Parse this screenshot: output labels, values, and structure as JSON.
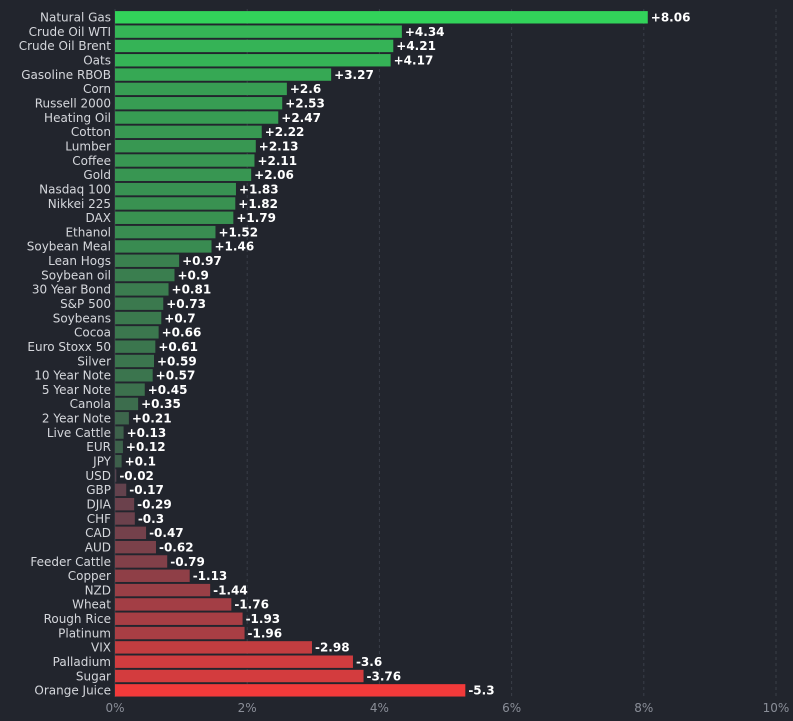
{
  "chart_data": {
    "type": "bar",
    "orientation": "horizontal",
    "categories": [
      "Natural Gas",
      "Crude Oil WTI",
      "Crude Oil Brent",
      "Oats",
      "Gasoline RBOB",
      "Corn",
      "Russell 2000",
      "Heating Oil",
      "Cotton",
      "Lumber",
      "Coffee",
      "Gold",
      "Nasdaq 100",
      "Nikkei 225",
      "DAX",
      "Ethanol",
      "Soybean Meal",
      "Lean Hogs",
      "Soybean oil",
      "30 Year Bond",
      "S&P 500",
      "Soybeans",
      "Cocoa",
      "Euro Stoxx 50",
      "Silver",
      "10 Year Note",
      "5 Year Note",
      "Canola",
      "2 Year Note",
      "Live Cattle",
      "EUR",
      "JPY",
      "USD",
      "GBP",
      "DJIA",
      "CHF",
      "CAD",
      "AUD",
      "Feeder Cattle",
      "Copper",
      "NZD",
      "Wheat",
      "Rough Rice",
      "Platinum",
      "VIX",
      "Palladium",
      "Sugar",
      "Orange Juice"
    ],
    "values": [
      8.06,
      4.34,
      4.21,
      4.17,
      3.27,
      2.6,
      2.53,
      2.47,
      2.22,
      2.13,
      2.11,
      2.06,
      1.83,
      1.82,
      1.79,
      1.52,
      1.46,
      0.97,
      0.9,
      0.81,
      0.73,
      0.7,
      0.66,
      0.61,
      0.59,
      0.57,
      0.45,
      0.35,
      0.21,
      0.13,
      0.12,
      0.1,
      -0.02,
      -0.17,
      -0.29,
      -0.3,
      -0.47,
      -0.62,
      -0.79,
      -1.13,
      -1.44,
      -1.76,
      -1.93,
      -1.96,
      -2.98,
      -3.6,
      -3.76,
      -5.3
    ],
    "value_labels": [
      "+8.06",
      "+4.34",
      "+4.21",
      "+4.17",
      "+3.27",
      "+2.6",
      "+2.53",
      "+2.47",
      "+2.22",
      "+2.13",
      "+2.11",
      "+2.06",
      "+1.83",
      "+1.82",
      "+1.79",
      "+1.52",
      "+1.46",
      "+0.97",
      "+0.9",
      "+0.81",
      "+0.73",
      "+0.7",
      "+0.66",
      "+0.61",
      "+0.59",
      "+0.57",
      "+0.45",
      "+0.35",
      "+0.21",
      "+0.13",
      "+0.12",
      "+0.1",
      "-0.02",
      "-0.17",
      "-0.29",
      "-0.3",
      "-0.47",
      "-0.62",
      "-0.79",
      "-1.13",
      "-1.44",
      "-1.76",
      "-1.93",
      "-1.96",
      "-2.98",
      "-3.6",
      "-3.76",
      "-5.3"
    ],
    "xticks": [
      0,
      2,
      4,
      6,
      8,
      10
    ],
    "xtick_labels": [
      "0%",
      "2%",
      "4%",
      "6%",
      "8%",
      "10%"
    ],
    "xlim": [
      0,
      10
    ],
    "bar_length": "absolute value",
    "grid": true,
    "colors": {
      "positive_strong": "#32d35a",
      "positive_weak": "#3f5049",
      "negative_weak": "#4e4350",
      "negative_strong": "#f23a3a",
      "background": "#22252d",
      "grid": "#3a3e48"
    }
  }
}
